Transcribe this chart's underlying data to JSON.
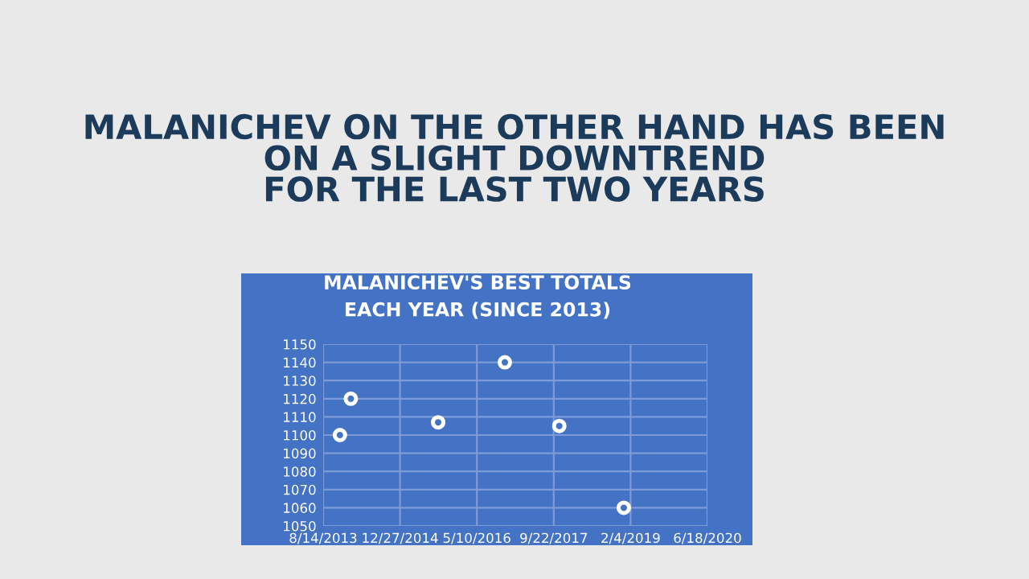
{
  "chart_data": {
    "type": "scatter",
    "title": "MALANICHEV'S BEST TOTALS\nEACH YEAR (SINCE 2013)",
    "annotations": [
      "MALANICHEV ON THE OTHER HAND HAS BEEN\nON A SLIGHT DOWNTREND\nFOR THE LAST TWO YEARS"
    ],
    "x": [
      "2013-12-01",
      "2014-02-10",
      "2015-09-01",
      "2016-11-08",
      "2017-10-28",
      "2018-12-22"
    ],
    "series": [
      {
        "color": "#ffffff",
        "values": [
          1100,
          1120,
          1107,
          1140,
          1105,
          1060
        ]
      }
    ],
    "marker": "circle",
    "xlim": [
      "2013-08-14",
      "2020-06-18"
    ],
    "xticks": [
      {
        "value": "2013-08-14",
        "label": "8/14/2013"
      },
      {
        "value": "2014-12-27",
        "label": "12/27/2014"
      },
      {
        "value": "2016-05-10",
        "label": "5/10/2016"
      },
      {
        "value": "2017-09-22",
        "label": "9/22/2017"
      },
      {
        "value": "2019-02-04",
        "label": "2/4/2019"
      },
      {
        "value": "2020-06-18",
        "label": "6/18/2020"
      }
    ],
    "ylim": [
      1050,
      1150
    ],
    "yticks": [
      1050,
      1060,
      1070,
      1080,
      1090,
      1100,
      1110,
      1120,
      1130,
      1140,
      1150
    ],
    "grid": true
  }
}
